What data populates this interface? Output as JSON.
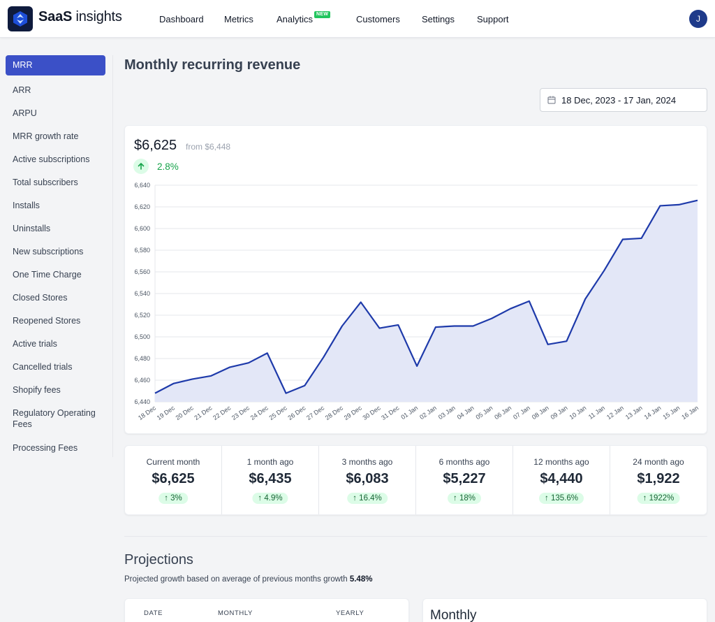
{
  "brand": {
    "name_bold": "SaaS",
    "name_rest": " insights"
  },
  "nav": {
    "items": [
      "Dashboard",
      "Metrics",
      "Analytics",
      "Customers",
      "Settings",
      "Support"
    ],
    "analytics_badge": "NEW",
    "avatar_initial": "J"
  },
  "sidebar": {
    "items": [
      {
        "label": "MRR",
        "active": true
      },
      {
        "label": "ARR"
      },
      {
        "label": "ARPU"
      },
      {
        "label": "MRR growth rate"
      },
      {
        "label": "Active subscriptions"
      },
      {
        "label": "Total subscribers"
      },
      {
        "label": "Installs"
      },
      {
        "label": "Uninstalls"
      },
      {
        "label": "New subscriptions"
      },
      {
        "label": "One Time Charge"
      },
      {
        "label": "Closed Stores"
      },
      {
        "label": "Reopened Stores"
      },
      {
        "label": "Active trials"
      },
      {
        "label": "Cancelled trials"
      },
      {
        "label": "Shopify fees"
      },
      {
        "label": "Regulatory Operating Fees"
      },
      {
        "label": "Processing Fees"
      }
    ]
  },
  "page": {
    "title": "Monthly recurring revenue",
    "date_range": "18 Dec, 2023 - 17 Jan, 2024"
  },
  "summary": {
    "value": "$6,625",
    "from": "from $6,448",
    "growth": "2.8%"
  },
  "chart_data": {
    "type": "area",
    "x": [
      "18 Dec",
      "19 Dec",
      "20 Dec",
      "21 Dec",
      "22 Dec",
      "23 Dec",
      "24 Dec",
      "25 Dec",
      "26 Dec",
      "27 Dec",
      "28 Dec",
      "29 Dec",
      "30 Dec",
      "31 Dec",
      "01 Jan",
      "02 Jan",
      "03 Jan",
      "04 Jan",
      "05 Jan",
      "06 Jan",
      "07 Jan",
      "08 Jan",
      "09 Jan",
      "10 Jan",
      "11 Jan",
      "12 Jan",
      "13 Jan",
      "14 Jan",
      "15 Jan",
      "16 Jan"
    ],
    "values": [
      6448,
      6457,
      6461,
      6464,
      6472,
      6476,
      6485,
      6448,
      6455,
      6481,
      6510,
      6532,
      6508,
      6511,
      6473,
      6509,
      6510,
      6510,
      6517,
      6526,
      6533,
      6493,
      6496,
      6535,
      6561,
      6590,
      6591,
      6621,
      6622,
      6626
    ],
    "ylim": [
      6440,
      6640
    ],
    "yticks": [
      "6,440",
      "6,460",
      "6,480",
      "6,500",
      "6,520",
      "6,540",
      "6,560",
      "6,580",
      "6,600",
      "6,620",
      "6,640"
    ],
    "grid": true,
    "colors": {
      "line": "#1e3aaa",
      "fill": "#e3e7f7"
    }
  },
  "stats": [
    {
      "label": "Current month",
      "value": "$6,625",
      "change": "3%"
    },
    {
      "label": "1 month ago",
      "value": "$6,435",
      "change": "4.9%"
    },
    {
      "label": "3 months ago",
      "value": "$6,083",
      "change": "16.4%"
    },
    {
      "label": "6 months ago",
      "value": "$5,227",
      "change": "18%"
    },
    {
      "label": "12 months ago",
      "value": "$4,440",
      "change": "135.6%"
    },
    {
      "label": "24 month ago",
      "value": "$1,922",
      "change": "1922%"
    }
  ],
  "projections": {
    "title": "Projections",
    "subtitle_prefix": "Projected growth based on average of previous months growth ",
    "subtitle_value": "5.48%",
    "table_headers": [
      "DATE",
      "MONTHLY",
      "YEARLY"
    ],
    "monthly_title": "Monthly"
  }
}
